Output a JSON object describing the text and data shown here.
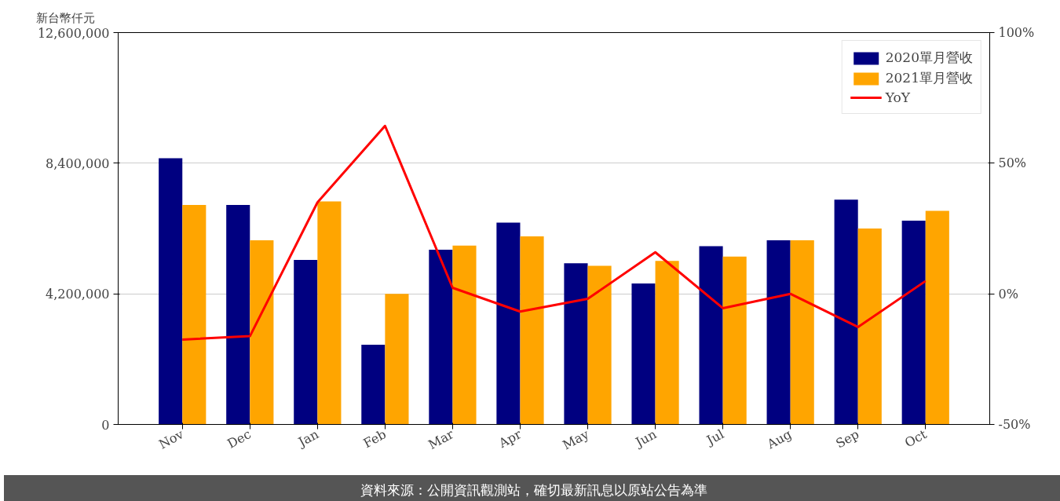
{
  "chart_data": {
    "type": "bar",
    "ylabel": "新台幣仟元",
    "categories": [
      "Nov",
      "Dec",
      "Jan",
      "Feb",
      "Mar",
      "Apr",
      "May",
      "Jun",
      "Jul",
      "Aug",
      "Sep",
      "Oct"
    ],
    "series": [
      {
        "name": "2020單月營收",
        "color": "#000080",
        "values": [
          8560000,
          7060000,
          5290000,
          2560000,
          5620000,
          6490000,
          5180000,
          4530000,
          5730000,
          5920000,
          7230000,
          6550000
        ]
      },
      {
        "name": "2021單月營收",
        "color": "#ffa500",
        "values": [
          7060000,
          5920000,
          7170000,
          4200000,
          5750000,
          6050000,
          5100000,
          5260000,
          5400000,
          5920000,
          6300000,
          6870000
        ]
      },
      {
        "name": "YoY",
        "type": "line",
        "axis": "y2",
        "color": "#ff0000",
        "values": [
          -17.5,
          -16.2,
          35,
          64.3,
          2.3,
          -6.8,
          -1.9,
          15.9,
          -5.5,
          0,
          -12.7,
          4.9
        ]
      }
    ],
    "ylim": [
      0,
      12600000
    ],
    "yticks": [
      {
        "value": 0,
        "label": "0"
      },
      {
        "value": 4200000,
        "label": "4,200,000"
      },
      {
        "value": 8400000,
        "label": "8,400,000"
      },
      {
        "value": 12600000,
        "label": "12,600,000"
      }
    ],
    "y2lim": [
      -50,
      100
    ],
    "y2ticks": [
      {
        "value": -50,
        "label": "-50%"
      },
      {
        "value": 0,
        "label": "0%"
      },
      {
        "value": 50,
        "label": "50%"
      },
      {
        "value": 100,
        "label": "100%"
      }
    ],
    "grid": "y",
    "legend": "top right",
    "line_style": "solid",
    "annotations": [
      "資料來源：公開資訊觀測站，確切最新訊息以原站公告為準"
    ]
  }
}
